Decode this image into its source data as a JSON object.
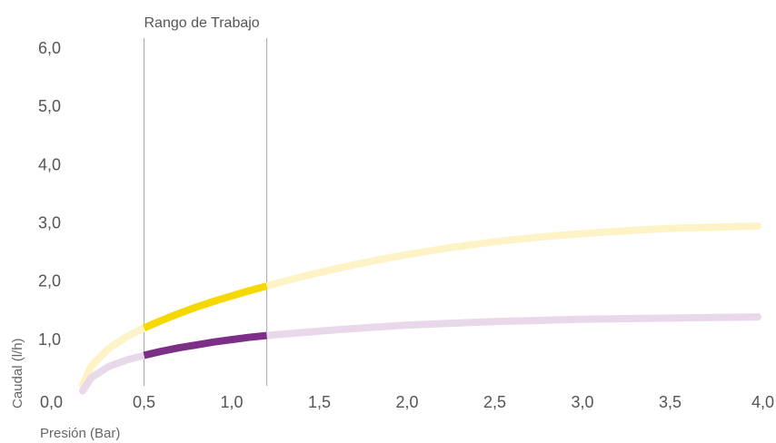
{
  "chart_data": {
    "type": "line",
    "title": "",
    "xlabel": "Presión (Bar)",
    "ylabel": "Caudal (l/h)",
    "xlim": [
      0,
      4.0
    ],
    "ylim": [
      0,
      6.0
    ],
    "x_ticks": [
      "0,0",
      "0,5",
      "1,0",
      "1,5",
      "2,0",
      "2,5",
      "3,0",
      "3,5",
      "4,0"
    ],
    "y_ticks": [
      "1,0",
      "2,0",
      "3,0",
      "4,0",
      "5,0",
      "6,0"
    ],
    "grid": false,
    "working_range": {
      "label": "Rango de Trabajo",
      "x": [
        0.5,
        1.2
      ]
    },
    "series": [
      {
        "color": "#f5d800",
        "color_faded": "#fdf3c6",
        "x": [
          0.15,
          0.2,
          0.3,
          0.4,
          0.5,
          0.6,
          0.7,
          0.8,
          0.9,
          1.0,
          1.1,
          1.2,
          1.4,
          1.6,
          1.8,
          2.0,
          2.25,
          2.5,
          2.75,
          3.0,
          3.25,
          3.5,
          3.75,
          4.0
        ],
        "y": [
          0.2,
          0.53,
          0.83,
          1.03,
          1.18,
          1.31,
          1.43,
          1.54,
          1.64,
          1.73,
          1.82,
          1.9,
          2.06,
          2.2,
          2.33,
          2.44,
          2.56,
          2.66,
          2.74,
          2.8,
          2.85,
          2.89,
          2.91,
          2.93
        ]
      },
      {
        "color": "#7b2f86",
        "color_faded": "#e8d8ea",
        "x": [
          0.15,
          0.2,
          0.3,
          0.4,
          0.5,
          0.6,
          0.7,
          0.8,
          0.9,
          1.0,
          1.1,
          1.2,
          1.4,
          1.6,
          1.8,
          2.0,
          2.25,
          2.5,
          2.75,
          3.0,
          3.25,
          3.5,
          3.75,
          4.0
        ],
        "y": [
          0.1,
          0.33,
          0.52,
          0.63,
          0.71,
          0.78,
          0.84,
          0.89,
          0.94,
          0.98,
          1.02,
          1.05,
          1.1,
          1.15,
          1.19,
          1.23,
          1.26,
          1.29,
          1.31,
          1.33,
          1.34,
          1.35,
          1.36,
          1.37
        ]
      }
    ]
  }
}
